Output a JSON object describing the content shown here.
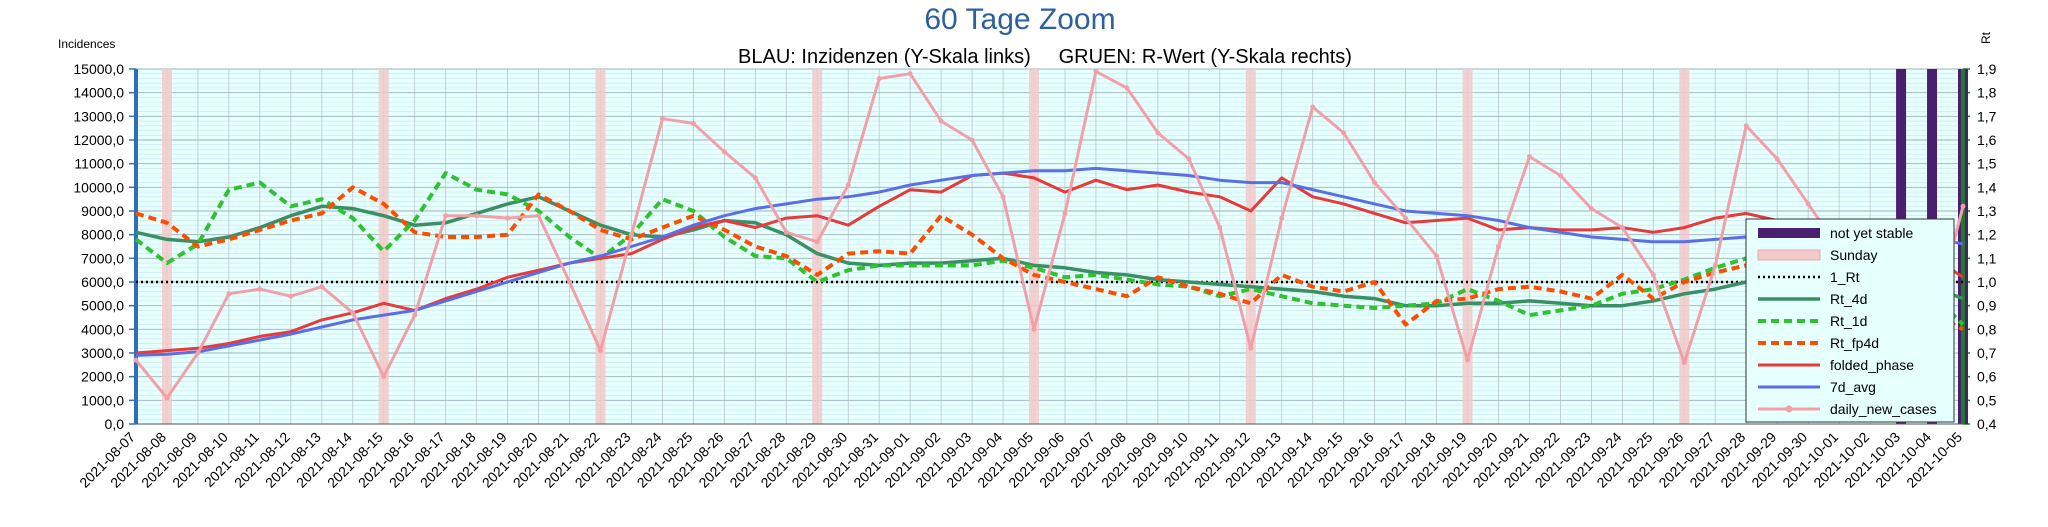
{
  "chart_data": {
    "type": "line",
    "title": "60 Tage Zoom",
    "subtitle": "BLAU: Inzidenzen (Y-Skala links)     GRUEN: R-Wert (Y-Skala rechts)",
    "ylabel_left": "Incidences",
    "ylabel_right": "Rt",
    "ylim_left": [
      0,
      15000
    ],
    "ylim_right": [
      0.4,
      1.9
    ],
    "left_ticks": [
      "0,0",
      "1000,0",
      "2000,0",
      "3000,0",
      "4000,0",
      "5000,0",
      "6000,0",
      "7000,0",
      "8000,0",
      "9000,0",
      "10000,0",
      "11000,0",
      "12000,0",
      "13000,0",
      "14000,0",
      "15000,0"
    ],
    "right_ticks": [
      "0,4",
      "0,5",
      "0,6",
      "0,7",
      "0,8",
      "0,9",
      "1,0",
      "1,1",
      "1,2",
      "1,3",
      "1,4",
      "1,5",
      "1,6",
      "1,7",
      "1,8",
      "1,9"
    ],
    "categories": [
      "2021-08-07",
      "2021-08-08",
      "2021-08-09",
      "2021-08-10",
      "2021-08-11",
      "2021-08-12",
      "2021-08-13",
      "2021-08-14",
      "2021-08-15",
      "2021-08-16",
      "2021-08-17",
      "2021-08-18",
      "2021-08-19",
      "2021-08-20",
      "2021-08-21",
      "2021-08-22",
      "2021-08-23",
      "2021-08-24",
      "2021-08-25",
      "2021-08-26",
      "2021-08-27",
      "2021-08-28",
      "2021-08-29",
      "2021-08-30",
      "2021-08-31",
      "2021-09-01",
      "2021-09-02",
      "2021-09-03",
      "2021-09-04",
      "2021-09-05",
      "2021-09-06",
      "2021-09-07",
      "2021-09-08",
      "2021-09-09",
      "2021-09-10",
      "2021-09-11",
      "2021-09-12",
      "2021-09-13",
      "2021-09-14",
      "2021-09-15",
      "2021-09-16",
      "2021-09-17",
      "2021-09-18",
      "2021-09-19",
      "2021-09-20",
      "2021-09-21",
      "2021-09-22",
      "2021-09-23",
      "2021-09-24",
      "2021-09-25",
      "2021-09-26",
      "2021-09-27",
      "2021-09-28",
      "2021-09-29",
      "2021-09-30",
      "2021-10-01",
      "2021-10-02",
      "2021-10-03",
      "2021-10-04",
      "2021-10-05"
    ],
    "grid": true,
    "legend_position": "right",
    "sunday_indices": [
      1,
      8,
      15,
      22,
      29,
      36,
      43,
      50
    ],
    "not_yet_stable_indices": [
      57,
      58,
      59
    ],
    "series": [
      {
        "name": "not yet stable",
        "kind": "band",
        "color": "#4b1f6f"
      },
      {
        "name": "Sunday",
        "kind": "band",
        "color": "#f3c9c9"
      },
      {
        "name": "1_Rt",
        "axis": "right",
        "color": "#000000",
        "dash": "dot",
        "values": [
          1.0,
          1.0,
          1.0,
          1.0,
          1.0,
          1.0,
          1.0,
          1.0,
          1.0,
          1.0,
          1.0,
          1.0,
          1.0,
          1.0,
          1.0,
          1.0,
          1.0,
          1.0,
          1.0,
          1.0,
          1.0,
          1.0,
          1.0,
          1.0,
          1.0,
          1.0,
          1.0,
          1.0,
          1.0,
          1.0,
          1.0,
          1.0,
          1.0,
          1.0,
          1.0,
          1.0,
          1.0,
          1.0,
          1.0,
          1.0,
          1.0,
          1.0,
          1.0,
          1.0,
          1.0,
          1.0,
          1.0,
          1.0,
          1.0,
          1.0,
          1.0,
          1.0,
          1.0,
          1.0,
          1.0,
          1.0,
          1.0,
          1.0,
          1.0,
          1.0
        ]
      },
      {
        "name": "Rt_4d",
        "axis": "right",
        "color": "#3a8f64",
        "dash": "solid",
        "values": [
          1.21,
          1.18,
          1.17,
          1.19,
          1.23,
          1.28,
          1.32,
          1.31,
          1.28,
          1.24,
          1.25,
          1.29,
          1.33,
          1.36,
          1.3,
          1.24,
          1.2,
          1.19,
          1.22,
          1.26,
          1.25,
          1.2,
          1.12,
          1.08,
          1.07,
          1.08,
          1.08,
          1.09,
          1.1,
          1.07,
          1.06,
          1.04,
          1.03,
          1.01,
          1.0,
          0.99,
          0.98,
          0.97,
          0.96,
          0.94,
          0.93,
          0.9,
          0.9,
          0.91,
          0.91,
          0.92,
          0.91,
          0.9,
          0.9,
          0.92,
          0.95,
          0.97,
          1.0,
          1.03,
          1.06,
          1.05,
          1.03,
          1.0,
          0.98,
          0.93
        ]
      },
      {
        "name": "Rt_1d",
        "axis": "right",
        "color": "#2ec22e",
        "dash": "dash",
        "values": [
          1.18,
          1.08,
          1.16,
          1.39,
          1.42,
          1.32,
          1.35,
          1.27,
          1.13,
          1.26,
          1.46,
          1.39,
          1.37,
          1.3,
          1.19,
          1.1,
          1.2,
          1.35,
          1.3,
          1.19,
          1.11,
          1.1,
          1.0,
          1.05,
          1.07,
          1.07,
          1.07,
          1.07,
          1.09,
          1.06,
          1.02,
          1.03,
          1.01,
          0.99,
          0.98,
          0.94,
          0.97,
          0.94,
          0.91,
          0.9,
          0.89,
          0.9,
          0.91,
          0.97,
          0.92,
          0.86,
          0.88,
          0.9,
          0.95,
          0.97,
          1.01,
          1.06,
          1.1,
          1.05,
          1.01,
          1.0,
          1.0,
          1.0,
          0.95,
          0.82
        ]
      },
      {
        "name": "Rt_fp4d",
        "axis": "right",
        "color": "#ff4d00",
        "dash": "dash",
        "values": [
          1.29,
          1.25,
          1.15,
          1.18,
          1.22,
          1.26,
          1.29,
          1.4,
          1.33,
          1.21,
          1.19,
          1.19,
          1.2,
          1.37,
          1.3,
          1.22,
          1.18,
          1.23,
          1.28,
          1.22,
          1.15,
          1.11,
          1.03,
          1.12,
          1.13,
          1.12,
          1.28,
          1.2,
          1.1,
          1.03,
          1.0,
          0.97,
          0.94,
          1.02,
          0.98,
          0.95,
          0.91,
          1.03,
          0.98,
          0.96,
          1.0,
          0.82,
          0.92,
          0.93,
          0.97,
          0.98,
          0.96,
          0.93,
          1.03,
          0.93,
          1.0,
          1.04,
          1.07,
          1.08,
          0.98,
          0.9,
          0.86,
          0.88,
          0.87,
          0.8
        ]
      },
      {
        "name": "folded_phase",
        "axis": "left",
        "color": "#e83a3a",
        "dash": "solid",
        "values": [
          3000,
          3100,
          3200,
          3400,
          3700,
          3900,
          4400,
          4700,
          5100,
          4800,
          5300,
          5700,
          6200,
          6500,
          6800,
          7000,
          7200,
          7800,
          8300,
          8600,
          8300,
          8700,
          8800,
          8400,
          9200,
          9900,
          9800,
          10500,
          10600,
          10400,
          9800,
          10300,
          9900,
          10100,
          9800,
          9600,
          9000,
          10400,
          9600,
          9300,
          8900,
          8500,
          8600,
          8700,
          8200,
          8300,
          8200,
          8200,
          8300,
          8100,
          8300,
          8700,
          8900,
          8600,
          8200,
          7900,
          7600,
          7600,
          7100,
          6200
        ]
      },
      {
        "name": "7d_avg",
        "axis": "left",
        "color": "#5a6fe6",
        "dash": "solid",
        "values": [
          2900,
          2950,
          3050,
          3300,
          3550,
          3800,
          4100,
          4400,
          4600,
          4800,
          5200,
          5600,
          6000,
          6400,
          6800,
          7100,
          7500,
          7900,
          8400,
          8800,
          9100,
          9300,
          9500,
          9600,
          9800,
          10100,
          10300,
          10500,
          10600,
          10700,
          10700,
          10800,
          10700,
          10600,
          10500,
          10300,
          10200,
          10200,
          9900,
          9600,
          9300,
          9000,
          8900,
          8800,
          8600,
          8300,
          8100,
          7900,
          7800,
          7700,
          7700,
          7800,
          7900,
          8000,
          8100,
          8100,
          8100,
          8000,
          7900,
          7600
        ]
      },
      {
        "name": "daily_new_cases",
        "axis": "left",
        "color": "#f2a0a8",
        "dash": "solid",
        "marker": true,
        "values": [
          2700,
          1100,
          3000,
          5500,
          5700,
          5400,
          5800,
          4700,
          2000,
          4600,
          8800,
          8800,
          8700,
          8800,
          6000,
          3100,
          8000,
          12900,
          12700,
          11500,
          10400,
          8100,
          7700,
          10100,
          14600,
          14800,
          12800,
          12000,
          9600,
          4000,
          8900,
          14900,
          14200,
          12300,
          11200,
          8300,
          3200,
          8700,
          13400,
          12300,
          10200,
          8700,
          7100,
          2700,
          7500,
          11300,
          10500,
          9100,
          8300,
          6300,
          2600,
          6700,
          12600,
          11200,
          9300,
          7400,
          4800,
          600,
          4100,
          9200
        ]
      }
    ]
  }
}
